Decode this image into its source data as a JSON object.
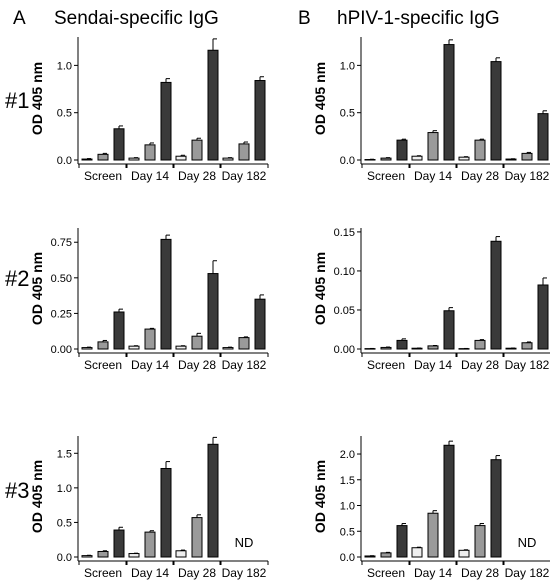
{
  "figure": {
    "columns": [
      {
        "letter": "A",
        "title": "Sendai-specific IgG"
      },
      {
        "letter": "B",
        "title": "hPIV-1-specific IgG"
      }
    ],
    "row_labels": [
      "#1",
      "#2",
      "#3"
    ],
    "colors": {
      "bar_light": "#eeeeee",
      "bar_mid": "#9a9a9a",
      "bar_dark": "#3a3a3a",
      "axis": "#000000"
    }
  },
  "chart_data": [
    {
      "type": "bar",
      "panel": "A #1",
      "categories": [
        "Screen",
        "Day 14",
        "Day 28",
        "Day 182"
      ],
      "ylabel": "OD 405 nm",
      "ylim": [
        0,
        1.3
      ],
      "yticks": [
        0,
        0.5,
        1.0
      ],
      "ytick_labels": [
        "0.0",
        "0.5",
        "1.0"
      ],
      "series": [
        {
          "values": [
            0.01,
            0.02,
            0.04,
            0.02
          ],
          "errors": [
            0.005,
            0.005,
            0.01,
            0.005
          ]
        },
        {
          "values": [
            0.06,
            0.16,
            0.21,
            0.17
          ],
          "errors": [
            0.01,
            0.02,
            0.02,
            0.02
          ]
        },
        {
          "values": [
            0.33,
            0.82,
            1.16,
            0.84
          ],
          "errors": [
            0.03,
            0.04,
            0.12,
            0.04
          ]
        }
      ],
      "not_done": []
    },
    {
      "type": "bar",
      "panel": "B #1",
      "categories": [
        "Screen",
        "Day 14",
        "Day 28",
        "Day 182"
      ],
      "ylabel": "OD 405 nm",
      "ylim": [
        0,
        1.3
      ],
      "yticks": [
        0,
        0.5,
        1.0
      ],
      "ytick_labels": [
        "0.0",
        "0.5",
        "1.0"
      ],
      "series": [
        {
          "values": [
            0.005,
            0.04,
            0.03,
            0.01
          ],
          "errors": [
            0.003,
            0.005,
            0.005,
            0.003
          ]
        },
        {
          "values": [
            0.02,
            0.29,
            0.21,
            0.07
          ],
          "errors": [
            0.005,
            0.02,
            0.01,
            0.01
          ]
        },
        {
          "values": [
            0.21,
            1.22,
            1.04,
            0.49
          ],
          "errors": [
            0.01,
            0.05,
            0.04,
            0.03
          ]
        }
      ],
      "not_done": []
    },
    {
      "type": "bar",
      "panel": "A #2",
      "categories": [
        "Screen",
        "Day 14",
        "Day 28",
        "Day 182"
      ],
      "ylabel": "OD 405 nm",
      "ylim": [
        0,
        0.85
      ],
      "yticks": [
        0,
        0.25,
        0.5,
        0.75
      ],
      "ytick_labels": [
        "0.00",
        "0.25",
        "0.50",
        "0.75"
      ],
      "series": [
        {
          "values": [
            0.01,
            0.02,
            0.02,
            0.01
          ],
          "errors": [
            0.003,
            0.003,
            0.003,
            0.003
          ]
        },
        {
          "values": [
            0.05,
            0.14,
            0.09,
            0.08
          ],
          "errors": [
            0.01,
            0.005,
            0.02,
            0.005
          ]
        },
        {
          "values": [
            0.26,
            0.77,
            0.53,
            0.35
          ],
          "errors": [
            0.02,
            0.03,
            0.09,
            0.03
          ]
        }
      ],
      "not_done": []
    },
    {
      "type": "bar",
      "panel": "B #2",
      "categories": [
        "Screen",
        "Day 14",
        "Day 28",
        "Day 182"
      ],
      "ylabel": "OD 405 nm",
      "ylim": [
        0,
        0.155
      ],
      "yticks": [
        0,
        0.05,
        0.1,
        0.15
      ],
      "ytick_labels": [
        "0.00",
        "0.05",
        "0.10",
        "0.15"
      ],
      "series": [
        {
          "values": [
            0.0005,
            0.001,
            0.0005,
            0.001
          ],
          "errors": [
            0.0002,
            0.0002,
            0.0002,
            0.0002
          ]
        },
        {
          "values": [
            0.002,
            0.004,
            0.011,
            0.008
          ],
          "errors": [
            0.0005,
            0.0005,
            0.001,
            0.001
          ]
        },
        {
          "values": [
            0.011,
            0.049,
            0.138,
            0.082
          ],
          "errors": [
            0.002,
            0.004,
            0.006,
            0.009
          ]
        }
      ],
      "not_done": []
    },
    {
      "type": "bar",
      "panel": "A #3",
      "categories": [
        "Screen",
        "Day 14",
        "Day 28",
        "Day 182"
      ],
      "ylabel": "OD 405 nm",
      "ylim": [
        0,
        1.75
      ],
      "yticks": [
        0,
        0.5,
        1.0,
        1.5
      ],
      "ytick_labels": [
        "0.0",
        "0.5",
        "1.0",
        "1.5"
      ],
      "series": [
        {
          "values": [
            0.02,
            0.05,
            0.09,
            null
          ],
          "errors": [
            0.005,
            0.005,
            0.01,
            null
          ]
        },
        {
          "values": [
            0.08,
            0.36,
            0.57,
            null
          ],
          "errors": [
            0.01,
            0.02,
            0.04,
            null
          ]
        },
        {
          "values": [
            0.39,
            1.28,
            1.63,
            null
          ],
          "errors": [
            0.04,
            0.1,
            0.1,
            null
          ]
        }
      ],
      "not_done": [
        "ND"
      ]
    },
    {
      "type": "bar",
      "panel": "B #3",
      "categories": [
        "Screen",
        "Day 14",
        "Day 28",
        "Day 182"
      ],
      "ylabel": "OD 405 nm",
      "ylim": [
        0,
        2.35
      ],
      "yticks": [
        0,
        0.5,
        1.0,
        1.5,
        2.0
      ],
      "ytick_labels": [
        "0.0",
        "0.5",
        "1.0",
        "1.5",
        "2.0"
      ],
      "series": [
        {
          "values": [
            0.02,
            0.18,
            0.13,
            null
          ],
          "errors": [
            0.005,
            0.01,
            0.01,
            null
          ]
        },
        {
          "values": [
            0.08,
            0.85,
            0.61,
            null
          ],
          "errors": [
            0.01,
            0.05,
            0.04,
            null
          ]
        },
        {
          "values": [
            0.61,
            2.17,
            1.89,
            null
          ],
          "errors": [
            0.04,
            0.08,
            0.08,
            null
          ]
        }
      ],
      "not_done": [
        "ND"
      ]
    }
  ]
}
